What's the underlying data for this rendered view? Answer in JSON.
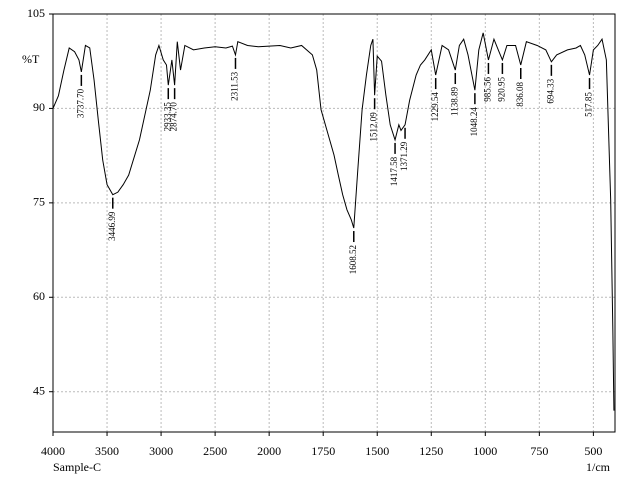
{
  "chart_data": {
    "type": "line",
    "y_label": "%T",
    "sample_label": "Sample-C",
    "x_unit_label": "1/cm",
    "xlim": [
      4000,
      400
    ],
    "ylim": [
      38.6,
      105
    ],
    "xticks": [
      4000,
      3500,
      3000,
      2500,
      2000,
      1750,
      1500,
      1250,
      1000,
      750,
      500
    ],
    "yticks": [
      105,
      90,
      75,
      60,
      45
    ],
    "grid": true,
    "series": [
      {
        "color": "#000000",
        "x": [
          4000,
          3950,
          3900,
          3850,
          3800,
          3760,
          3737.7,
          3700,
          3660,
          3620,
          3580,
          3540,
          3500,
          3446.99,
          3400,
          3350,
          3300,
          3200,
          3100,
          3050,
          3020,
          2980,
          2950,
          2933.35,
          2900,
          2874.7,
          2850,
          2820,
          2780,
          2700,
          2600,
          2500,
          2400,
          2340,
          2311.53,
          2290,
          2200,
          2100,
          2000,
          1950,
          1900,
          1850,
          1800,
          1780,
          1760,
          1740,
          1720,
          1700,
          1680,
          1660,
          1640,
          1620,
          1608.52,
          1590,
          1570,
          1550,
          1530,
          1520,
          1512.09,
          1500,
          1480,
          1460,
          1440,
          1417.58,
          1400,
          1390,
          1371.29,
          1350,
          1320,
          1300,
          1280,
          1250,
          1229.54,
          1200,
          1170,
          1138.89,
          1120,
          1100,
          1080,
          1048.24,
          1030,
          1010,
          985.56,
          960,
          940,
          920.95,
          900,
          860,
          836.08,
          810,
          760,
          720,
          694.33,
          670,
          620,
          580,
          560,
          540,
          517.85,
          500,
          480,
          460,
          440,
          420,
          410,
          405
        ],
        "values": [
          90,
          92,
          96,
          99.6,
          99,
          97.7,
          95.8,
          100,
          99.6,
          94.5,
          88,
          81.8,
          77.9,
          76.3,
          76.7,
          77.9,
          79.4,
          85,
          92.9,
          98.5,
          100,
          97.7,
          96.9,
          93.7,
          97.7,
          93.7,
          100.6,
          96.1,
          100,
          99.3,
          99.6,
          99.8,
          99.6,
          99.9,
          98.5,
          100.6,
          100,
          99.8,
          99.9,
          100,
          99.6,
          100,
          98.5,
          96.1,
          89.8,
          87.4,
          85,
          82.6,
          79.4,
          76.3,
          73.9,
          72.3,
          71,
          80.2,
          89.8,
          95.3,
          100,
          101,
          92.1,
          98.3,
          97.5,
          92.1,
          87.4,
          85,
          87.4,
          86.5,
          87.4,
          91.3,
          95.3,
          96.9,
          97.7,
          99.3,
          95.3,
          100,
          99.3,
          96.1,
          100,
          101,
          98.5,
          92.9,
          99.3,
          102,
          97.7,
          101,
          99.3,
          97.7,
          100,
          100,
          96.9,
          100.6,
          100,
          99.3,
          97.4,
          98.5,
          99.3,
          99.6,
          100,
          98.5,
          95.3,
          99.3,
          100,
          101,
          97.7,
          75.5,
          54.8,
          42
        ]
      }
    ],
    "annotations": [
      {
        "value": 3737.7,
        "label": "3737.70"
      },
      {
        "value": 3446.99,
        "label": "3446.99"
      },
      {
        "value": 2933.35,
        "label": "2933.35"
      },
      {
        "value": 2874.7,
        "label": "2874.70"
      },
      {
        "value": 2311.53,
        "label": "2311.53"
      },
      {
        "value": 1608.52,
        "label": "1608.52"
      },
      {
        "value": 1512.09,
        "label": "1512.09"
      },
      {
        "value": 1417.58,
        "label": "1417.58"
      },
      {
        "value": 1371.29,
        "label": "1371.29"
      },
      {
        "value": 1229.54,
        "label": "1229.54"
      },
      {
        "value": 1138.89,
        "label": "1138.89"
      },
      {
        "value": 1048.24,
        "label": "1048.24"
      },
      {
        "value": 985.56,
        "label": "985.56"
      },
      {
        "value": 920.95,
        "label": "920.95"
      },
      {
        "value": 836.08,
        "label": "836.08"
      },
      {
        "value": 694.33,
        "label": "694.33"
      },
      {
        "value": 517.85,
        "label": "517.85"
      }
    ]
  }
}
